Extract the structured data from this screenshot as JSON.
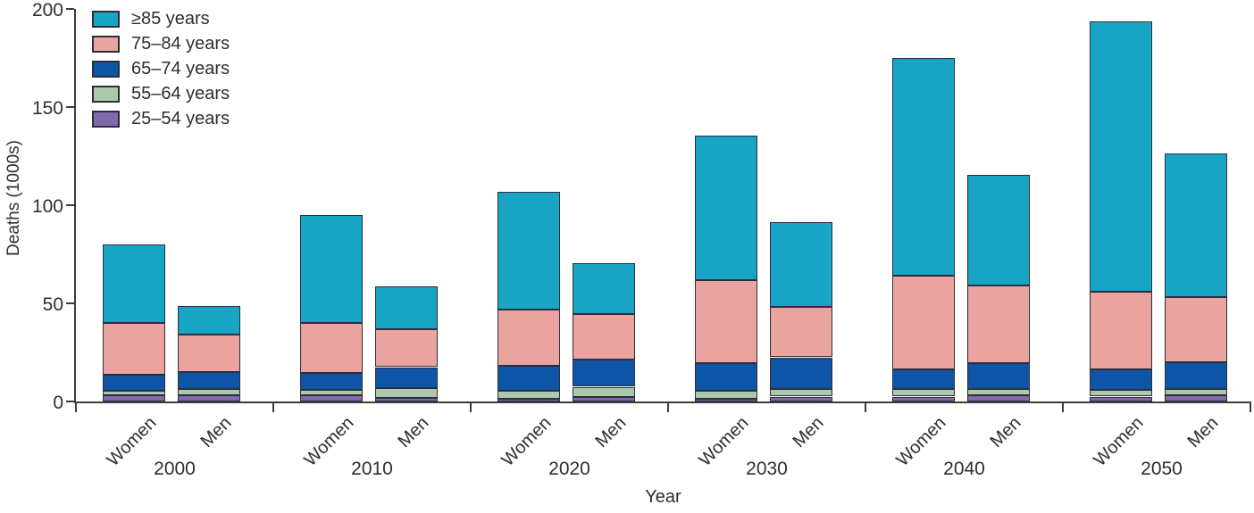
{
  "chart_data": {
    "type": "bar",
    "stacked": true,
    "title": "",
    "ylabel": "Deaths (1000s)",
    "xlabel": "Year",
    "ylim": [
      0,
      200
    ],
    "yticks": [
      0,
      50,
      100,
      150,
      200
    ],
    "grid": false,
    "legend_position": "top-left",
    "legend_order_top_to_bottom": [
      "≥85 years",
      "75–84 years",
      "65–74 years",
      "55–64 years",
      "25–54 years"
    ],
    "groups": [
      "2000",
      "2010",
      "2020",
      "2030",
      "2040",
      "2050"
    ],
    "bars_per_group": [
      "Women",
      "Men"
    ],
    "units": "thousands of deaths",
    "colors": {
      "ge85": "#18a4c4",
      "75_84": "#eaa49f",
      "65_74": "#0e55a8",
      "55_64": "#a9c9ac",
      "25_54": "#8269ad",
      "outline": "#2e2e3a",
      "axis": "#3c3c3c",
      "text": "#2e2e2e"
    },
    "series": [
      {
        "name": "25–54 years",
        "color": "#8269ad",
        "stack_position": "bottom",
        "values": [
          [
            3,
            3
          ],
          [
            3,
            2
          ],
          [
            1.5,
            2.5
          ],
          [
            1.5,
            2.5
          ],
          [
            2.5,
            3
          ],
          [
            2.5,
            3
          ]
        ]
      },
      {
        "name": "55–64 years",
        "color": "#a9c9ac",
        "values": [
          [
            2.5,
            3.5
          ],
          [
            3,
            5
          ],
          [
            4,
            5
          ],
          [
            4,
            4
          ],
          [
            4,
            3.5
          ],
          [
            3.5,
            3.5
          ]
        ]
      },
      {
        "name": "65–74 years",
        "color": "#0e55a8",
        "values": [
          [
            8,
            8.5
          ],
          [
            8.5,
            10.5
          ],
          [
            12.5,
            14
          ],
          [
            14,
            16
          ],
          [
            10,
            13
          ],
          [
            10.5,
            13.5
          ]
        ]
      },
      {
        "name": "75–84 years",
        "color": "#eaa49f",
        "values": [
          [
            26.5,
            19
          ],
          [
            25.5,
            19.5
          ],
          [
            29,
            23
          ],
          [
            42.5,
            25.5
          ],
          [
            47.5,
            39.5
          ],
          [
            39.5,
            33
          ]
        ]
      },
      {
        "name": "≥85 years",
        "color": "#18a4c4",
        "stack_position": "top",
        "values": [
          [
            40,
            14.5
          ],
          [
            55,
            21.5
          ],
          [
            60,
            26
          ],
          [
            73.5,
            43.5
          ],
          [
            111,
            56.5
          ],
          [
            137.5,
            73.5
          ]
        ]
      }
    ]
  }
}
